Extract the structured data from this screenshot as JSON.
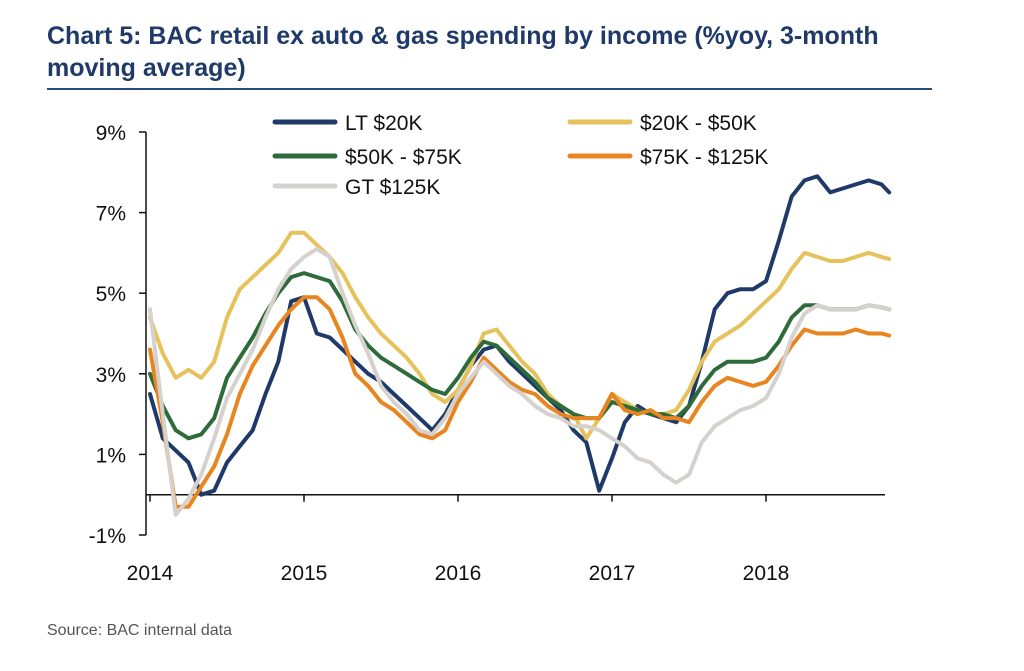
{
  "title": "Chart 5: BAC retail ex auto & gas spending by income (%yoy, 3-month moving average)",
  "source": "Source:  BAC internal data",
  "chart_data": {
    "type": "line",
    "title": "Chart 5: BAC retail ex auto & gas spending by income (%yoy, 3-month moving average)",
    "xlabel": "",
    "ylabel": "",
    "x_ticks": [
      "2014",
      "2015",
      "2016",
      "2017",
      "2018"
    ],
    "y_ticks": [
      "9%",
      "7%",
      "5%",
      "3%",
      "1%",
      "-1%"
    ],
    "y_tick_values": [
      9,
      7,
      5,
      3,
      1,
      -1
    ],
    "xlim": [
      2014.0,
      2018.85
    ],
    "ylim": [
      -1,
      9
    ],
    "grid": false,
    "legend_position": "top",
    "x": [
      2014.0,
      2014.083,
      2014.167,
      2014.25,
      2014.333,
      2014.417,
      2014.5,
      2014.583,
      2014.667,
      2014.75,
      2014.833,
      2014.917,
      2015.0,
      2015.083,
      2015.167,
      2015.25,
      2015.333,
      2015.417,
      2015.5,
      2015.583,
      2015.667,
      2015.75,
      2015.833,
      2015.917,
      2016.0,
      2016.083,
      2016.167,
      2016.25,
      2016.333,
      2016.417,
      2016.5,
      2016.583,
      2016.667,
      2016.75,
      2016.833,
      2016.917,
      2017.0,
      2017.083,
      2017.167,
      2017.25,
      2017.333,
      2017.417,
      2017.5,
      2017.583,
      2017.667,
      2017.75,
      2017.833,
      2017.917,
      2018.0,
      2018.083,
      2018.167,
      2018.25,
      2018.333,
      2018.417,
      2018.5,
      2018.583,
      2018.667,
      2018.75,
      2018.8
    ],
    "series": [
      {
        "name": "LT $20K",
        "color": "#1f3a68",
        "values": [
          2.5,
          1.4,
          1.1,
          0.8,
          0.0,
          0.1,
          0.8,
          1.2,
          1.6,
          2.5,
          3.3,
          4.8,
          4.9,
          4.0,
          3.9,
          3.6,
          3.3,
          3.0,
          2.8,
          2.5,
          2.2,
          1.9,
          1.6,
          2.0,
          2.6,
          3.2,
          3.6,
          3.7,
          3.3,
          3.0,
          2.7,
          2.4,
          2.1,
          1.6,
          1.3,
          0.1,
          0.9,
          1.8,
          2.2,
          2.0,
          1.9,
          1.8,
          2.2,
          3.3,
          4.6,
          5.0,
          5.1,
          5.1,
          5.3,
          6.3,
          7.4,
          7.8,
          7.9,
          7.5,
          7.6,
          7.7,
          7.8,
          7.7,
          7.5
        ]
      },
      {
        "name": "$20K - $50K",
        "color": "#e6c25c",
        "values": [
          4.4,
          3.5,
          2.9,
          3.1,
          2.9,
          3.3,
          4.4,
          5.1,
          5.4,
          5.7,
          6.0,
          6.5,
          6.5,
          6.2,
          5.9,
          5.5,
          4.9,
          4.4,
          4.0,
          3.7,
          3.4,
          3.0,
          2.5,
          2.3,
          2.6,
          3.2,
          4.0,
          4.1,
          3.7,
          3.3,
          3.0,
          2.5,
          2.2,
          2.0,
          1.4,
          1.9,
          2.5,
          2.3,
          2.1,
          2.0,
          2.0,
          2.1,
          2.6,
          3.3,
          3.8,
          4.0,
          4.2,
          4.5,
          4.8,
          5.1,
          5.6,
          6.0,
          5.9,
          5.8,
          5.8,
          5.9,
          6.0,
          5.9,
          5.85
        ]
      },
      {
        "name": "$50K - $75K",
        "color": "#2e6b3b",
        "values": [
          3.0,
          2.2,
          1.6,
          1.4,
          1.5,
          1.9,
          2.9,
          3.4,
          3.9,
          4.5,
          5.0,
          5.4,
          5.5,
          5.4,
          5.3,
          4.8,
          4.1,
          3.7,
          3.4,
          3.2,
          3.0,
          2.8,
          2.6,
          2.5,
          2.9,
          3.4,
          3.8,
          3.7,
          3.4,
          3.1,
          2.8,
          2.4,
          2.2,
          2.0,
          1.9,
          1.9,
          2.3,
          2.2,
          2.1,
          2.0,
          2.0,
          1.9,
          2.2,
          2.7,
          3.1,
          3.3,
          3.3,
          3.3,
          3.4,
          3.8,
          4.4,
          4.7,
          4.7,
          4.6,
          4.6,
          4.6,
          4.7,
          4.65,
          4.6
        ]
      },
      {
        "name": "$75K - $125K",
        "color": "#e8851f",
        "values": [
          3.6,
          1.8,
          -0.3,
          -0.3,
          0.2,
          0.7,
          1.5,
          2.5,
          3.2,
          3.7,
          4.2,
          4.6,
          4.9,
          4.9,
          4.6,
          3.9,
          3.0,
          2.7,
          2.3,
          2.1,
          1.8,
          1.5,
          1.4,
          1.6,
          2.3,
          2.8,
          3.4,
          3.1,
          2.8,
          2.6,
          2.5,
          2.2,
          2.0,
          1.9,
          1.9,
          1.9,
          2.5,
          2.1,
          2.0,
          2.1,
          1.9,
          1.9,
          1.8,
          2.3,
          2.7,
          2.9,
          2.8,
          2.7,
          2.8,
          3.2,
          3.7,
          4.1,
          4.0,
          4.0,
          4.0,
          4.1,
          4.0,
          4.0,
          3.95
        ]
      },
      {
        "name": "GT $125K",
        "color": "#d5d1cc",
        "values": [
          4.6,
          2.0,
          -0.5,
          -0.1,
          0.5,
          1.4,
          2.4,
          3.0,
          3.6,
          4.4,
          5.1,
          5.6,
          5.9,
          6.1,
          5.9,
          5.0,
          4.2,
          3.5,
          2.7,
          2.3,
          2.0,
          1.6,
          1.5,
          1.9,
          2.5,
          2.9,
          3.3,
          3.0,
          2.7,
          2.5,
          2.2,
          2.0,
          1.9,
          1.7,
          1.7,
          1.6,
          1.4,
          1.2,
          0.9,
          0.8,
          0.5,
          0.3,
          0.5,
          1.3,
          1.7,
          1.9,
          2.1,
          2.2,
          2.4,
          3.0,
          3.9,
          4.5,
          4.7,
          4.6,
          4.6,
          4.6,
          4.7,
          4.65,
          4.6
        ]
      }
    ]
  }
}
